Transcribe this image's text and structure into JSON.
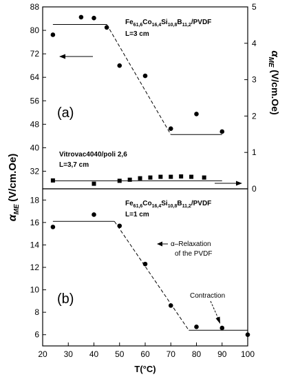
{
  "chart_data": [
    {
      "panel": "(a)",
      "type": "scatter",
      "x_range": [
        20,
        100
      ],
      "y_left_range": [
        26,
        88
      ],
      "y_left_ticks": [
        "32",
        "40",
        "48",
        "56",
        "64",
        "72",
        "80",
        "88"
      ],
      "y_right_range": [
        0,
        5
      ],
      "y_right_ticks": [
        "0",
        "1",
        "2",
        "3",
        "4",
        "5"
      ],
      "y_right_label": "α",
      "y_right_label_sub": "ME",
      "y_right_label_unit": "(V/cm.Oe)",
      "series": [
        {
          "name_parts": [
            "Fe",
            "61,6",
            "Co",
            "16,4",
            "Si",
            "10,8",
            "B",
            "11,2",
            "/PVDF"
          ],
          "length_label": "L=3 cm",
          "marker": "circle",
          "axis": "left",
          "x": [
            24,
            35,
            40,
            45,
            50,
            60,
            70,
            80,
            90
          ],
          "y": [
            78.5,
            84.5,
            84.2,
            81,
            68,
            64.5,
            46.5,
            51.5,
            45.5
          ],
          "trend_x": [
            24,
            45,
            70,
            90
          ],
          "trend_y": [
            82,
            82,
            44.5,
            44.5
          ]
        },
        {
          "name": "Vitrovac4040/poli 2,6",
          "length_label": "L=3,7 cm",
          "marker": "square",
          "axis": "right",
          "x": [
            24,
            40,
            50,
            54,
            58,
            62,
            66,
            70,
            74,
            78,
            83
          ],
          "y": [
            0.23,
            0.14,
            0.22,
            0.25,
            0.29,
            0.31,
            0.33,
            0.33,
            0.34,
            0.33,
            0.31
          ],
          "trend_x": [
            24,
            90
          ],
          "trend_y": [
            0.22,
            0.22
          ]
        }
      ],
      "arrow_left_label": "",
      "arrow_right_label": ""
    },
    {
      "panel": "(b)",
      "type": "scatter",
      "x_range": [
        20,
        100
      ],
      "x_ticks": [
        "20",
        "30",
        "40",
        "50",
        "60",
        "70",
        "80",
        "90",
        "100"
      ],
      "xlabel": "T(°C)",
      "y_range": [
        5,
        19
      ],
      "y_ticks": [
        "6",
        "8",
        "10",
        "12",
        "14",
        "16",
        "18"
      ],
      "series": [
        {
          "name_parts": [
            "Fe",
            "61,6",
            "Co",
            "16,4",
            "Si",
            "10,8",
            "B",
            "11,2",
            "/PVDF"
          ],
          "length_label": "L=1 cm",
          "marker": "circle",
          "x": [
            24,
            40,
            50,
            60,
            70,
            80,
            90,
            100
          ],
          "y": [
            15.6,
            16.7,
            15.7,
            12.3,
            8.6,
            6.7,
            6.6,
            6.0
          ],
          "trend_x": [
            24,
            48,
            77,
            100
          ],
          "trend_y": [
            16.1,
            16.1,
            6.4,
            6.4
          ]
        }
      ],
      "annotations": [
        {
          "text_lines": [
            "α–Relaxation",
            "of the PVDF"
          ]
        },
        {
          "text_lines": [
            "Contraction"
          ]
        }
      ]
    }
  ],
  "shared_ylabel": "α",
  "shared_ylabel_sub": "ME",
  "shared_ylabel_unit": "(V/cm.Oe)"
}
